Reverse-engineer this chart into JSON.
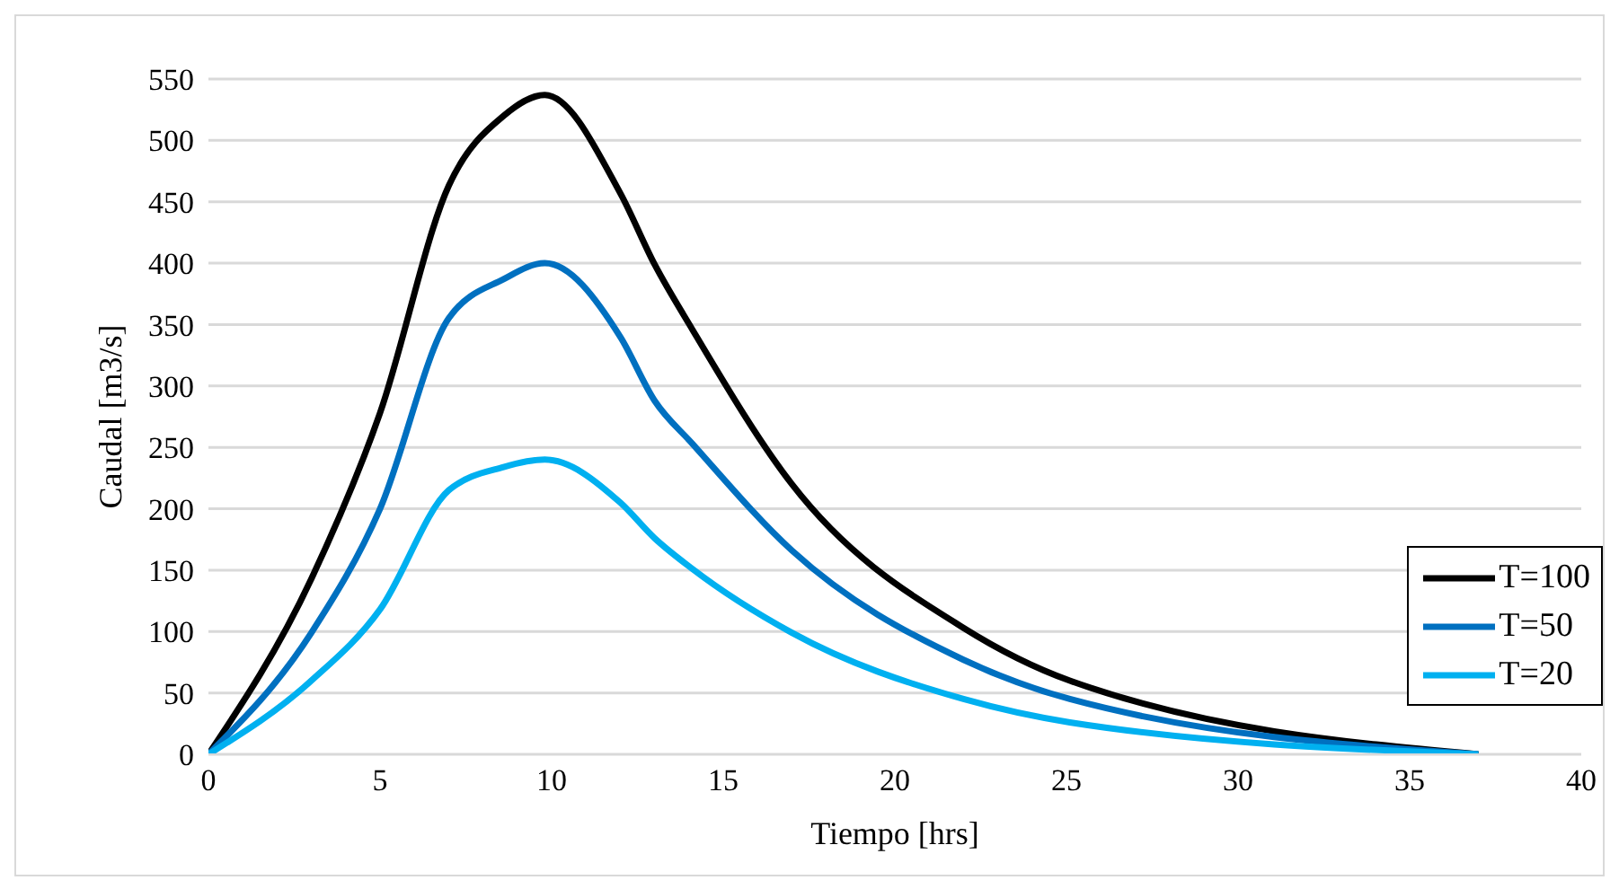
{
  "chart_data": {
    "type": "line",
    "xlabel": "Tiempo [hrs]",
    "ylabel": "Caudal [m3/s]",
    "x": [
      0,
      3,
      5,
      7,
      8.6,
      9.8,
      12,
      13,
      14.1,
      17,
      22,
      25.1,
      37
    ],
    "series": [
      {
        "name": "T=100",
        "color": "#000000",
        "values": [
          0,
          143,
          278,
          463,
          520,
          537,
          457,
          399,
          346,
          220,
          103,
          60,
          0
        ]
      },
      {
        "name": "T=50",
        "color": "#0070c0",
        "values": [
          0,
          99,
          200,
          355,
          387,
          400,
          340,
          288,
          253,
          166,
          77,
          45,
          0
        ]
      },
      {
        "name": "T=20",
        "color": "#00b0f0",
        "values": [
          0,
          60,
          118,
          215,
          234,
          240,
          205,
          176,
          151,
          99,
          45,
          26,
          0
        ]
      }
    ],
    "xlim": [
      0,
      40
    ],
    "xticks": [
      0,
      5,
      10,
      15,
      20,
      25,
      30,
      35,
      40
    ],
    "ylim": [
      0,
      550
    ],
    "yticks": [
      0,
      50,
      100,
      150,
      200,
      250,
      300,
      350,
      400,
      450,
      500,
      550
    ],
    "grid": "y",
    "legend": "right",
    "marker": "none",
    "line_style": "solid"
  }
}
